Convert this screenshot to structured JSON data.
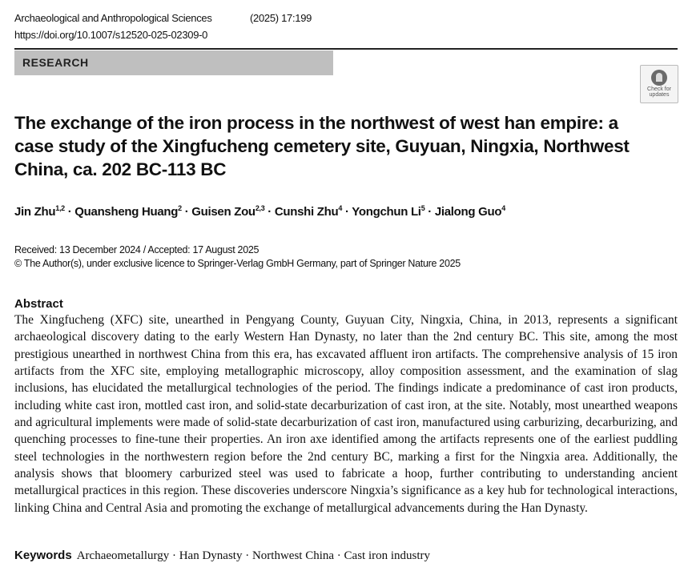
{
  "header": {
    "journal": "Archaeological and Anthropological Sciences",
    "volume": "(2025) 17:199",
    "doi": "https://doi.org/10.1007/s12520-025-02309-0"
  },
  "section_label": "RESEARCH",
  "check_updates": {
    "line1": "Check for",
    "line2": "updates"
  },
  "title": "The exchange of the iron process in the northwest of west han empire: a case study of the Xingfucheng cemetery site, Guyuan, Ningxia, Northwest China, ca. 202 BC-113 BC",
  "authors": [
    {
      "name": "Jin Zhu",
      "aff": "1,2"
    },
    {
      "name": "Quansheng Huang",
      "aff": "2"
    },
    {
      "name": "Guisen Zou",
      "aff": "2,3"
    },
    {
      "name": "Cunshi Zhu",
      "aff": "4"
    },
    {
      "name": "Yongchun Li",
      "aff": "5"
    },
    {
      "name": "Jialong Guo",
      "aff": "4"
    }
  ],
  "author_separator": " · ",
  "dates": "Received: 13 December 2024 / Accepted: 17 August 2025",
  "copyright": "© The Author(s), under exclusive licence to Springer-Verlag GmbH Germany, part of Springer Nature 2025",
  "abstract": {
    "heading": "Abstract",
    "text": "The Xingfucheng (XFC) site, unearthed in Pengyang County, Guyuan City, Ningxia, China, in 2013, represents a significant archaeological discovery dating to the early Western Han Dynasty, no later than the 2nd century BC. This site, among the most prestigious unearthed in northwest China from this era, has excavated affluent iron artifacts. The comprehensive analysis of 15 iron artifacts from the XFC site, employing metallographic microscopy, alloy composition assessment, and the examination of slag inclusions, has elucidated the metallurgical technologies of the period. The findings indicate a predominance of cast iron products, including white cast iron, mottled cast iron, and solid-state decarburization of cast iron, at the site. Notably, most unearthed weapons and agricultural implements were made of solid-state decarburization of cast iron, manufactured using carburizing, decarburizing, and quenching processes to fine-tune their properties. An iron axe identified among the artifacts represents one of the earliest puddling steel technologies in the northwestern region before the 2nd century BC, marking a first for the Ningxia area. Additionally, the analysis shows that bloomery carburized steel was used to fabricate a hoop, further contributing to understanding ancient metallurgical practices in this region. These discoveries underscore Ningxia’s significance as a key hub for technological interactions, linking China and Central Asia and promoting the exchange of metallurgical advancements during the Han Dynasty."
  },
  "keywords": {
    "label": "Keywords",
    "items": [
      "Archaeometallurgy",
      "Han Dynasty",
      "Northwest China",
      "Cast iron industry"
    ]
  }
}
